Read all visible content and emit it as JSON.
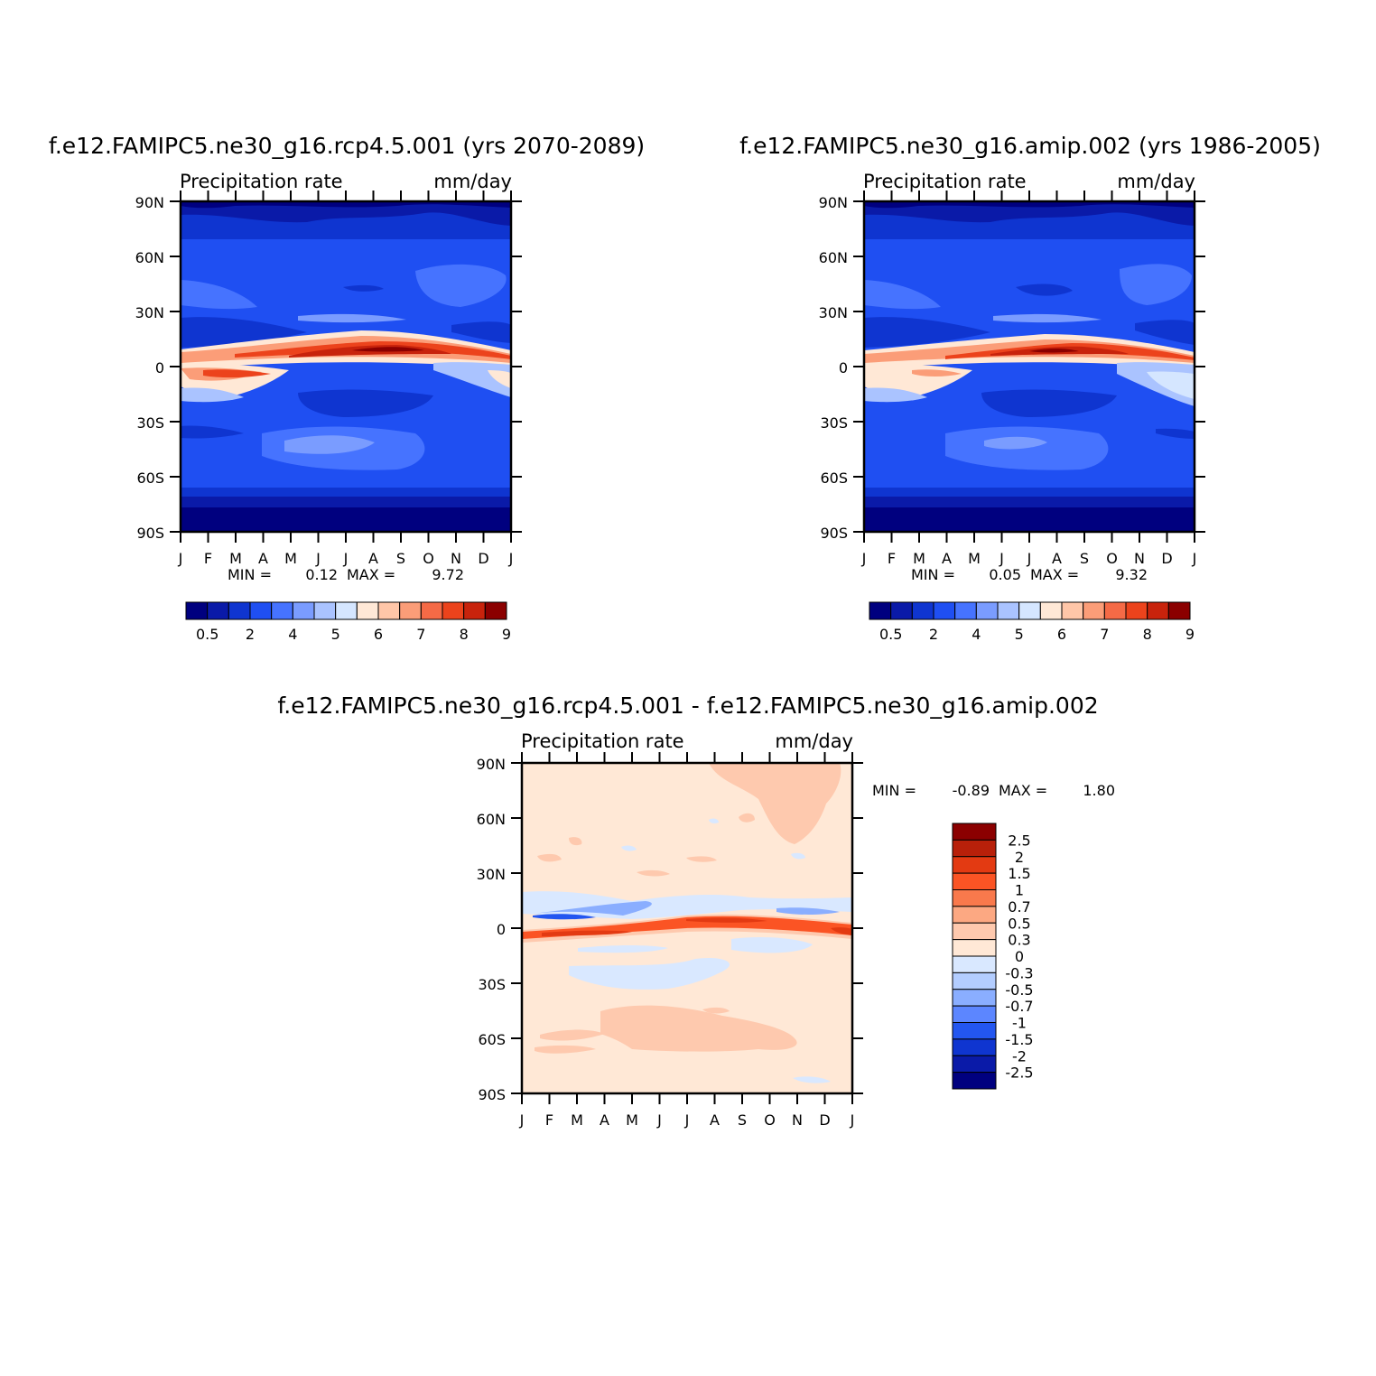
{
  "panels": [
    {
      "title": "f.e12.FAMIPC5.ne30_g16.rcp4.5.001 (yrs 2070-2089)",
      "left_label": "Precipitation rate",
      "right_label": "mm/day",
      "min_label": "MIN =",
      "min_value": "0.12",
      "max_label": "MAX =",
      "max_value": "9.72"
    },
    {
      "title": "f.e12.FAMIPC5.ne30_g16.amip.002 (yrs 1986-2005)",
      "left_label": "Precipitation rate",
      "right_label": "mm/day",
      "min_label": "MIN =",
      "min_value": "0.05",
      "max_label": "MAX =",
      "max_value": "9.32"
    },
    {
      "title": "f.e12.FAMIPC5.ne30_g16.rcp4.5.001 - f.e12.FAMIPC5.ne30_g16.amip.002",
      "left_label": "Precipitation rate",
      "right_label": "mm/day",
      "min_label": "MIN =",
      "min_value": "-0.89",
      "max_label": "MAX =",
      "max_value": "1.80"
    }
  ],
  "chart_data": [
    {
      "type": "heatmap",
      "title": "f.e12.FAMIPC5.ne30_g16.rcp4.5.001 (yrs 2070-2089)",
      "x": [
        "J",
        "F",
        "M",
        "A",
        "M",
        "J",
        "J",
        "A",
        "S",
        "O",
        "N",
        "D",
        "J"
      ],
      "y_ticks": [
        "90N",
        "60N",
        "30N",
        "0",
        "30S",
        "60S",
        "90S"
      ],
      "units": "mm/day",
      "min": 0.12,
      "max": 9.72,
      "colorbar_labels": [
        "0.5",
        "2",
        "4",
        "5",
        "6",
        "7",
        "8",
        "9"
      ],
      "colors": [
        "#00007f",
        "#0a1aa8",
        "#0f35d0",
        "#1f4ff2",
        "#4673ff",
        "#7a9cff",
        "#aac3ff",
        "#d5e6ff",
        "#ffe8d6",
        "#ffc6a8",
        "#fb9d78",
        "#f56a46",
        "#ec431c",
        "#c8230c",
        "#8b0000"
      ]
    },
    {
      "type": "heatmap",
      "title": "f.e12.FAMIPC5.ne30_g16.amip.002 (yrs 1986-2005)",
      "x": [
        "J",
        "F",
        "M",
        "A",
        "M",
        "J",
        "J",
        "A",
        "S",
        "O",
        "N",
        "D",
        "J"
      ],
      "y_ticks": [
        "90N",
        "60N",
        "30N",
        "0",
        "30S",
        "60S",
        "90S"
      ],
      "units": "mm/day",
      "min": 0.05,
      "max": 9.32,
      "colorbar_labels": [
        "0.5",
        "2",
        "4",
        "5",
        "6",
        "7",
        "8",
        "9"
      ],
      "colors": [
        "#00007f",
        "#0a1aa8",
        "#0f35d0",
        "#1f4ff2",
        "#4673ff",
        "#7a9cff",
        "#aac3ff",
        "#d5e6ff",
        "#ffe8d6",
        "#ffc6a8",
        "#fb9d78",
        "#f56a46",
        "#ec431c",
        "#c8230c",
        "#8b0000"
      ]
    },
    {
      "type": "heatmap",
      "title": "f.e12.FAMIPC5.ne30_g16.rcp4.5.001 - f.e12.FAMIPC5.ne30_g16.amip.002",
      "x": [
        "J",
        "F",
        "M",
        "A",
        "M",
        "J",
        "J",
        "A",
        "S",
        "O",
        "N",
        "D",
        "J"
      ],
      "y_ticks": [
        "90N",
        "60N",
        "30N",
        "0",
        "30S",
        "60S",
        "90S"
      ],
      "units": "mm/day",
      "min": -0.89,
      "max": 1.8,
      "colorbar_labels": [
        "2.5",
        "2",
        "1.5",
        "1",
        "0.7",
        "0.5",
        "0.3",
        "0",
        "-0.3",
        "-0.5",
        "-0.7",
        "-1",
        "-1.5",
        "-2",
        "-2.5"
      ],
      "colors": [
        "#8b0000",
        "#b8200a",
        "#e33a12",
        "#fb5424",
        "#f9794c",
        "#fca882",
        "#fec9ae",
        "#ffe8d6",
        "#d9e8ff",
        "#b3cdff",
        "#8aaeff",
        "#5c86ff",
        "#2356f0",
        "#0f35d0",
        "#0a1aa8",
        "#00007f"
      ]
    }
  ]
}
